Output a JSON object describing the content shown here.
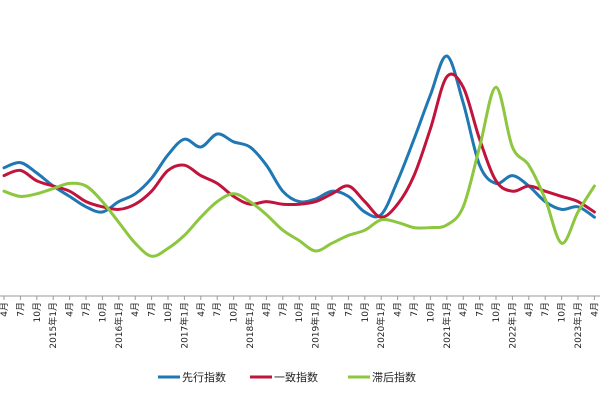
{
  "chart_data": {
    "type": "line",
    "x_ticks": [
      "4月",
      "7月",
      "10月",
      "2015年1月",
      "4月",
      "7月",
      "10月",
      "2016年1月",
      "4月",
      "7月",
      "10月",
      "2017年1月",
      "4月",
      "7月",
      "10月",
      "2018年1月",
      "4月",
      "7月",
      "10月",
      "2019年1月",
      "4月",
      "7月",
      "10月",
      "2020年1月",
      "4月",
      "7月",
      "10月",
      "2021年1月",
      "4月",
      "7月",
      "10月",
      "2022年1月",
      "4月",
      "7月",
      "10月",
      "2023年1月",
      "4月"
    ],
    "y_range": [
      0,
      100
    ],
    "grid": false,
    "legend_position": "bottom",
    "series": [
      {
        "name": "先行指数",
        "color": "#1f77b4",
        "values": [
          [
            0,
            47
          ],
          [
            2,
            49
          ],
          [
            4,
            45
          ],
          [
            6,
            40
          ],
          [
            8,
            36
          ],
          [
            10,
            32
          ],
          [
            12,
            30
          ],
          [
            14,
            34
          ],
          [
            16,
            37
          ],
          [
            18,
            43
          ],
          [
            20,
            52
          ],
          [
            22,
            58
          ],
          [
            24,
            55
          ],
          [
            26,
            60
          ],
          [
            28,
            57
          ],
          [
            30,
            55
          ],
          [
            32,
            48
          ],
          [
            34,
            38
          ],
          [
            36,
            34
          ],
          [
            38,
            35
          ],
          [
            40,
            38
          ],
          [
            42,
            36
          ],
          [
            44,
            30
          ],
          [
            46,
            29
          ],
          [
            48,
            42
          ],
          [
            50,
            58
          ],
          [
            52,
            75
          ],
          [
            54,
            90
          ],
          [
            56,
            72
          ],
          [
            58,
            48
          ],
          [
            60,
            41
          ],
          [
            62,
            44
          ],
          [
            64,
            40
          ],
          [
            66,
            34
          ],
          [
            68,
            31
          ],
          [
            70,
            32
          ],
          [
            72,
            28
          ]
        ]
      },
      {
        "name": "一致指数",
        "color": "#c0143c",
        "values": [
          [
            0,
            44
          ],
          [
            2,
            46
          ],
          [
            4,
            42
          ],
          [
            6,
            40
          ],
          [
            8,
            38
          ],
          [
            10,
            34
          ],
          [
            12,
            32
          ],
          [
            14,
            31
          ],
          [
            16,
            33
          ],
          [
            18,
            38
          ],
          [
            20,
            46
          ],
          [
            22,
            48
          ],
          [
            24,
            44
          ],
          [
            26,
            41
          ],
          [
            28,
            36
          ],
          [
            30,
            33
          ],
          [
            32,
            34
          ],
          [
            34,
            33
          ],
          [
            36,
            33
          ],
          [
            38,
            34
          ],
          [
            40,
            37
          ],
          [
            42,
            40
          ],
          [
            44,
            34
          ],
          [
            46,
            28
          ],
          [
            48,
            33
          ],
          [
            50,
            44
          ],
          [
            52,
            62
          ],
          [
            54,
            82
          ],
          [
            56,
            78
          ],
          [
            58,
            58
          ],
          [
            60,
            42
          ],
          [
            62,
            38
          ],
          [
            64,
            40
          ],
          [
            66,
            38
          ],
          [
            68,
            36
          ],
          [
            70,
            34
          ],
          [
            72,
            30
          ]
        ]
      },
      {
        "name": "滞后指数",
        "color": "#8dc63f",
        "values": [
          [
            0,
            38
          ],
          [
            2,
            36
          ],
          [
            4,
            37
          ],
          [
            6,
            39
          ],
          [
            8,
            41
          ],
          [
            10,
            40
          ],
          [
            12,
            34
          ],
          [
            14,
            26
          ],
          [
            16,
            18
          ],
          [
            18,
            13
          ],
          [
            20,
            16
          ],
          [
            22,
            21
          ],
          [
            24,
            28
          ],
          [
            26,
            34
          ],
          [
            28,
            37
          ],
          [
            30,
            34
          ],
          [
            32,
            29
          ],
          [
            34,
            23
          ],
          [
            36,
            19
          ],
          [
            38,
            15
          ],
          [
            40,
            18
          ],
          [
            42,
            21
          ],
          [
            44,
            23
          ],
          [
            46,
            27
          ],
          [
            48,
            26
          ],
          [
            50,
            24
          ],
          [
            52,
            24
          ],
          [
            54,
            25
          ],
          [
            56,
            32
          ],
          [
            58,
            55
          ],
          [
            60,
            78
          ],
          [
            62,
            55
          ],
          [
            64,
            48
          ],
          [
            66,
            35
          ],
          [
            68,
            18
          ],
          [
            70,
            30
          ],
          [
            72,
            40
          ]
        ]
      }
    ]
  }
}
